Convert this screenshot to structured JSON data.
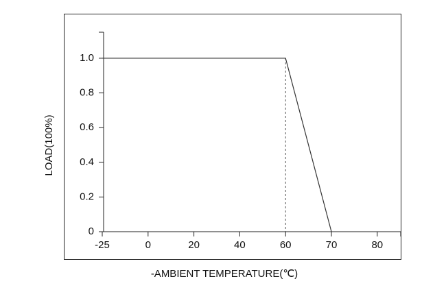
{
  "chart_data": {
    "type": "line",
    "x_label": "-AMBIENT TEMPERATURE(℃)",
    "y_label": "LOAD(100%)",
    "categories": [
      "-25",
      "0",
      "20",
      "40",
      "60",
      "70",
      "80"
    ],
    "values": [
      1,
      1,
      1,
      1,
      1,
      0,
      null
    ],
    "color": "#333333",
    "ylim": [
      0,
      1.15
    ],
    "yticks": [
      0,
      0.2,
      0.4,
      0.6,
      {
        "value": 0.8,
        "label": "0.8"
      },
      {
        "value": 1,
        "label": "1.0"
      }
    ],
    "grid": false
  }
}
